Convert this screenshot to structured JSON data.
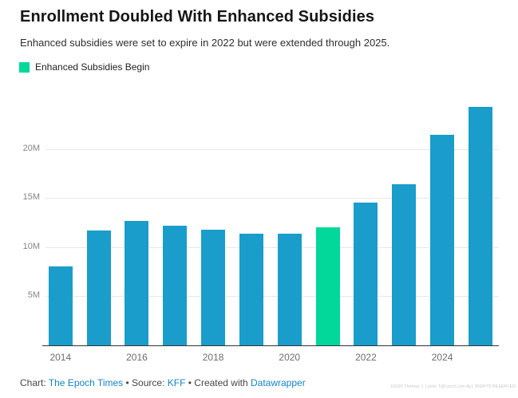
{
  "header": {
    "title": "Enrollment Doubled With Enhanced Subsidies",
    "subtitle": "Enhanced subsidies were set to expire in 2022 but were extended through 2025.",
    "legend": {
      "label": "Enhanced Subsidies Begin",
      "swatch_color": "#02d89a"
    }
  },
  "chart_data": {
    "type": "bar",
    "title": "Enrollment Doubled With Enhanced Subsidies",
    "subtitle": "Enhanced subsidies were set to expire in 2022 but were extended through 2025.",
    "unit": "M",
    "categories": [
      2014,
      2015,
      2016,
      2017,
      2018,
      2019,
      2020,
      2021,
      2022,
      2023,
      2024,
      2025
    ],
    "values": [
      8.0,
      11.7,
      12.7,
      12.2,
      11.8,
      11.4,
      11.4,
      12.0,
      14.5,
      16.4,
      21.4,
      24.3
    ],
    "highlight_year": 2021,
    "highlight_meaning": "Enhanced Subsidies Begin",
    "colors": {
      "default": "#1a9dcb",
      "highlight": "#02d89a"
    },
    "ylim": [
      0,
      24.5
    ],
    "grid": true,
    "y_ticks": [
      {
        "value": 5,
        "label": "5M"
      },
      {
        "value": 10,
        "label": "10M"
      },
      {
        "value": 15,
        "label": "15M"
      },
      {
        "value": 20,
        "label": "20M"
      }
    ],
    "x_ticks": [
      "2014",
      "2016",
      "2018",
      "2020",
      "2022",
      "2024"
    ],
    "legend_position": "top-left",
    "xlabel": "",
    "ylabel": ""
  },
  "footer": {
    "chart_prefix": "Chart: ",
    "chart_link": "The Epoch Times",
    "source_prefix": " • Source: ",
    "source_link": "KFF",
    "created_prefix": " • Created with ",
    "created_link": "Datawrapper",
    "watermark": "©2020 Thomas J. Lynch T@Lynch.com ALL RIGHTS RESERVED"
  }
}
